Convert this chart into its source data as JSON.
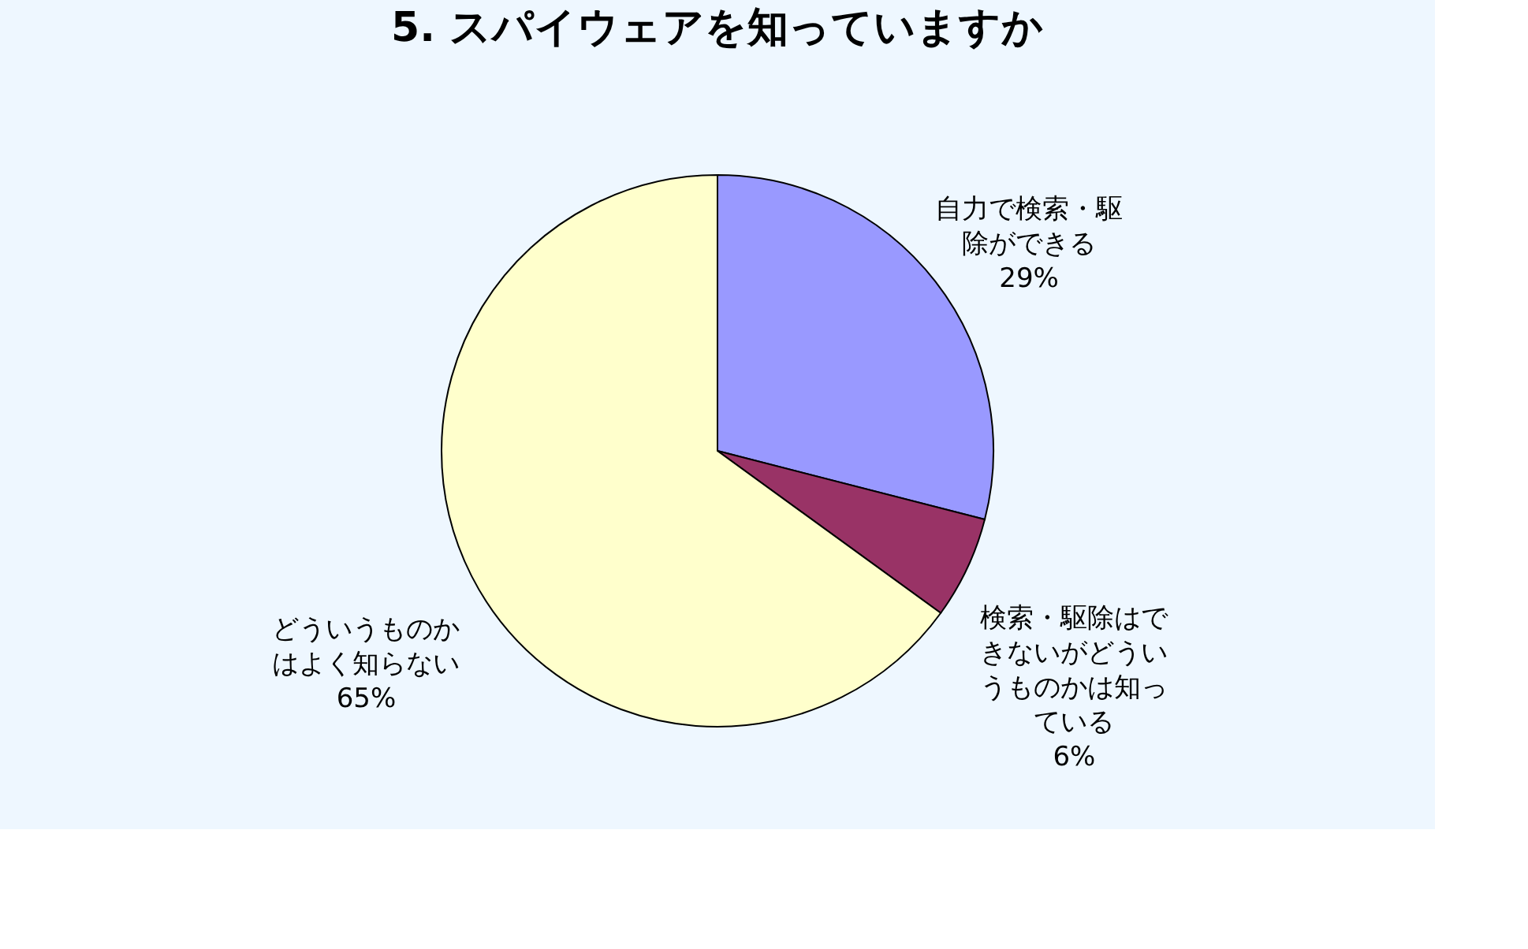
{
  "chart_data": {
    "type": "pie",
    "title": "5. スパイウェアを知っていますか",
    "categories": [
      "自力で検索・駆除ができる",
      "検索・駆除はできないがどういうものかは知っている",
      "どういうものかはよく知らない"
    ],
    "values": [
      29,
      6,
      65
    ],
    "colors": [
      "#9999ff",
      "#993366",
      "#ffffcc"
    ],
    "value_labels": [
      "29%",
      "6%",
      "65%"
    ],
    "legend": false
  }
}
